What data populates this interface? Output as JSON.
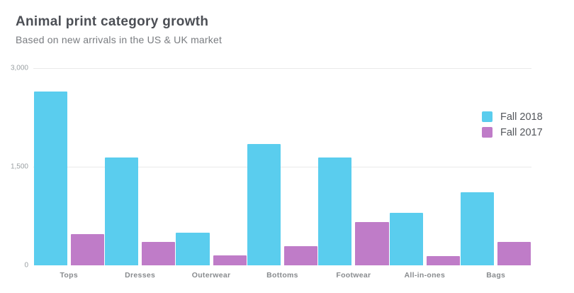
{
  "header": {
    "title": "Animal print category growth",
    "subtitle": "Based on new arrivals in the US & UK market"
  },
  "colors": {
    "fall_2018": "#5acdee",
    "fall_2017": "#bf7cc8",
    "title_text": "#4c4f55",
    "subtitle_text": "#797c80",
    "gridline": "#eaeaea",
    "axis_label_text": "#9aa0a3"
  },
  "chart_data": {
    "type": "bar",
    "title": "Animal print category growth",
    "subtitle": "Based on new arrivals in the US & UK market",
    "categories": [
      "Tops",
      "Dresses",
      "Outerwear",
      "Bottoms",
      "Footwear",
      "All-in-ones",
      "Bags"
    ],
    "series": [
      {
        "name": "Fall 2018",
        "color": "#5acdee",
        "values": [
          2645,
          1640,
          500,
          1845,
          1640,
          800,
          1110
        ]
      },
      {
        "name": "Fall 2017",
        "color": "#bf7cc8",
        "values": [
          475,
          355,
          150,
          290,
          660,
          140,
          355
        ]
      }
    ],
    "xlabel": "",
    "ylabel": "",
    "ylim": [
      0,
      3000
    ],
    "yticks": [
      0,
      1500,
      3000
    ],
    "ytick_labels": [
      "0",
      "1,500",
      "3,000"
    ],
    "grid": "horizontal",
    "legend_position": "right"
  }
}
